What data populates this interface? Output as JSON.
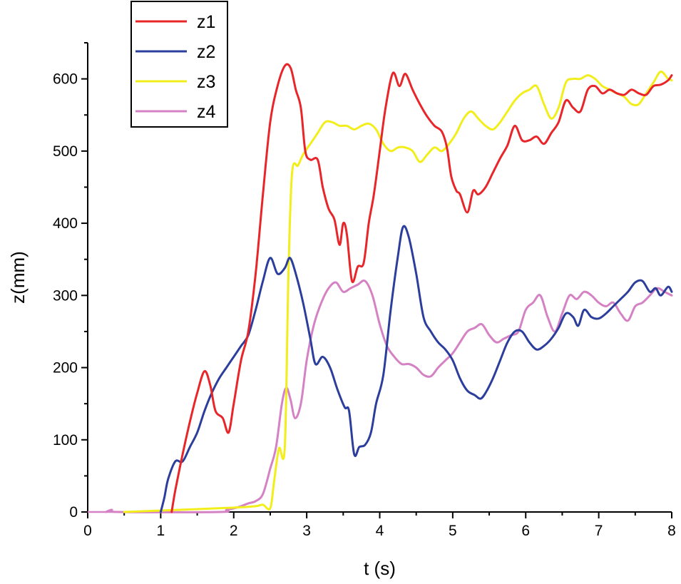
{
  "chart_data": {
    "type": "line",
    "title": "",
    "xlabel": "t (s)",
    "ylabel": "z(mm)",
    "xlim": [
      0,
      8
    ],
    "ylim": [
      0,
      650
    ],
    "xticks": [
      0,
      1,
      2,
      3,
      4,
      5,
      6,
      7,
      8
    ],
    "yticks": [
      0,
      100,
      200,
      300,
      400,
      500,
      600
    ],
    "grid": false,
    "legend": "top-left",
    "series": [
      {
        "name": "z1",
        "color": "#e8262a",
        "points": [
          [
            1.15,
            0
          ],
          [
            1.2,
            30
          ],
          [
            1.3,
            80
          ],
          [
            1.4,
            125
          ],
          [
            1.5,
            165
          ],
          [
            1.6,
            195
          ],
          [
            1.68,
            175
          ],
          [
            1.75,
            140
          ],
          [
            1.85,
            130
          ],
          [
            1.93,
            110
          ],
          [
            2.0,
            150
          ],
          [
            2.1,
            210
          ],
          [
            2.2,
            250
          ],
          [
            2.3,
            330
          ],
          [
            2.4,
            440
          ],
          [
            2.5,
            540
          ],
          [
            2.6,
            590
          ],
          [
            2.7,
            618
          ],
          [
            2.78,
            615
          ],
          [
            2.85,
            585
          ],
          [
            2.92,
            560
          ],
          [
            2.98,
            500
          ],
          [
            3.05,
            488
          ],
          [
            3.15,
            488
          ],
          [
            3.22,
            450
          ],
          [
            3.3,
            420
          ],
          [
            3.38,
            405
          ],
          [
            3.45,
            370
          ],
          [
            3.5,
            400
          ],
          [
            3.55,
            385
          ],
          [
            3.62,
            320
          ],
          [
            3.7,
            340
          ],
          [
            3.78,
            345
          ],
          [
            3.85,
            400
          ],
          [
            3.92,
            440
          ],
          [
            4.0,
            500
          ],
          [
            4.08,
            560
          ],
          [
            4.18,
            608
          ],
          [
            4.27,
            590
          ],
          [
            4.35,
            607
          ],
          [
            4.45,
            585
          ],
          [
            4.55,
            565
          ],
          [
            4.65,
            548
          ],
          [
            4.75,
            535
          ],
          [
            4.85,
            527
          ],
          [
            4.92,
            505
          ],
          [
            4.98,
            465
          ],
          [
            5.05,
            445
          ],
          [
            5.1,
            440
          ],
          [
            5.2,
            415
          ],
          [
            5.28,
            445
          ],
          [
            5.35,
            440
          ],
          [
            5.45,
            450
          ],
          [
            5.55,
            470
          ],
          [
            5.65,
            490
          ],
          [
            5.75,
            508
          ],
          [
            5.85,
            535
          ],
          [
            5.95,
            515
          ],
          [
            6.05,
            515
          ],
          [
            6.15,
            520
          ],
          [
            6.25,
            510
          ],
          [
            6.35,
            525
          ],
          [
            6.45,
            540
          ],
          [
            6.55,
            570
          ],
          [
            6.65,
            560
          ],
          [
            6.75,
            555
          ],
          [
            6.85,
            585
          ],
          [
            6.95,
            590
          ],
          [
            7.05,
            580
          ],
          [
            7.15,
            585
          ],
          [
            7.25,
            580
          ],
          [
            7.35,
            578
          ],
          [
            7.45,
            585
          ],
          [
            7.55,
            580
          ],
          [
            7.65,
            578
          ],
          [
            7.75,
            590
          ],
          [
            7.85,
            592
          ],
          [
            7.95,
            598
          ],
          [
            8.0,
            605
          ]
        ]
      },
      {
        "name": "z2",
        "color": "#2c3e9c",
        "points": [
          [
            1.0,
            0
          ],
          [
            1.05,
            20
          ],
          [
            1.1,
            45
          ],
          [
            1.2,
            70
          ],
          [
            1.3,
            70
          ],
          [
            1.4,
            90
          ],
          [
            1.5,
            110
          ],
          [
            1.6,
            140
          ],
          [
            1.7,
            165
          ],
          [
            1.8,
            185
          ],
          [
            1.9,
            200
          ],
          [
            2.0,
            215
          ],
          [
            2.1,
            230
          ],
          [
            2.2,
            245
          ],
          [
            2.3,
            280
          ],
          [
            2.4,
            320
          ],
          [
            2.5,
            352
          ],
          [
            2.6,
            330
          ],
          [
            2.7,
            338
          ],
          [
            2.77,
            352
          ],
          [
            2.85,
            330
          ],
          [
            2.95,
            290
          ],
          [
            3.05,
            240
          ],
          [
            3.12,
            205
          ],
          [
            3.22,
            215
          ],
          [
            3.32,
            200
          ],
          [
            3.42,
            170
          ],
          [
            3.52,
            145
          ],
          [
            3.58,
            140
          ],
          [
            3.65,
            80
          ],
          [
            3.72,
            90
          ],
          [
            3.8,
            93
          ],
          [
            3.88,
            110
          ],
          [
            3.95,
            150
          ],
          [
            4.05,
            190
          ],
          [
            4.15,
            280
          ],
          [
            4.25,
            355
          ],
          [
            4.32,
            395
          ],
          [
            4.4,
            380
          ],
          [
            4.5,
            330
          ],
          [
            4.6,
            270
          ],
          [
            4.7,
            250
          ],
          [
            4.8,
            235
          ],
          [
            4.9,
            225
          ],
          [
            5.0,
            210
          ],
          [
            5.1,
            185
          ],
          [
            5.2,
            168
          ],
          [
            5.3,
            162
          ],
          [
            5.38,
            157
          ],
          [
            5.45,
            165
          ],
          [
            5.55,
            185
          ],
          [
            5.65,
            210
          ],
          [
            5.75,
            235
          ],
          [
            5.85,
            250
          ],
          [
            5.95,
            250
          ],
          [
            6.05,
            235
          ],
          [
            6.15,
            225
          ],
          [
            6.25,
            230
          ],
          [
            6.35,
            240
          ],
          [
            6.45,
            255
          ],
          [
            6.55,
            275
          ],
          [
            6.65,
            270
          ],
          [
            6.72,
            258
          ],
          [
            6.8,
            280
          ],
          [
            6.9,
            270
          ],
          [
            7.0,
            268
          ],
          [
            7.1,
            275
          ],
          [
            7.2,
            285
          ],
          [
            7.3,
            295
          ],
          [
            7.4,
            305
          ],
          [
            7.5,
            318
          ],
          [
            7.6,
            320
          ],
          [
            7.7,
            305
          ],
          [
            7.78,
            310
          ],
          [
            7.85,
            300
          ],
          [
            7.95,
            312
          ],
          [
            8.0,
            305
          ]
        ]
      },
      {
        "name": "z3",
        "color": "#f2ee1c",
        "points": [
          [
            0.5,
            0
          ],
          [
            1.0,
            2
          ],
          [
            1.5,
            4
          ],
          [
            2.0,
            6
          ],
          [
            2.3,
            8
          ],
          [
            2.4,
            10
          ],
          [
            2.5,
            5
          ],
          [
            2.55,
            40
          ],
          [
            2.62,
            88
          ],
          [
            2.7,
            90
          ],
          [
            2.75,
            330
          ],
          [
            2.8,
            470
          ],
          [
            2.88,
            480
          ],
          [
            2.95,
            495
          ],
          [
            3.05,
            510
          ],
          [
            3.15,
            525
          ],
          [
            3.25,
            540
          ],
          [
            3.35,
            540
          ],
          [
            3.45,
            535
          ],
          [
            3.55,
            535
          ],
          [
            3.65,
            530
          ],
          [
            3.75,
            535
          ],
          [
            3.85,
            538
          ],
          [
            3.95,
            530
          ],
          [
            4.05,
            510
          ],
          [
            4.15,
            500
          ],
          [
            4.25,
            505
          ],
          [
            4.35,
            505
          ],
          [
            4.45,
            500
          ],
          [
            4.55,
            485
          ],
          [
            4.65,
            495
          ],
          [
            4.75,
            505
          ],
          [
            4.85,
            500
          ],
          [
            4.95,
            510
          ],
          [
            5.05,
            525
          ],
          [
            5.15,
            545
          ],
          [
            5.25,
            555
          ],
          [
            5.35,
            545
          ],
          [
            5.45,
            535
          ],
          [
            5.55,
            530
          ],
          [
            5.65,
            540
          ],
          [
            5.75,
            555
          ],
          [
            5.85,
            570
          ],
          [
            5.95,
            580
          ],
          [
            6.05,
            585
          ],
          [
            6.15,
            590
          ],
          [
            6.25,
            565
          ],
          [
            6.35,
            545
          ],
          [
            6.45,
            560
          ],
          [
            6.55,
            595
          ],
          [
            6.65,
            600
          ],
          [
            6.75,
            600
          ],
          [
            6.85,
            605
          ],
          [
            6.95,
            600
          ],
          [
            7.05,
            590
          ],
          [
            7.15,
            585
          ],
          [
            7.25,
            580
          ],
          [
            7.35,
            575
          ],
          [
            7.45,
            565
          ],
          [
            7.55,
            565
          ],
          [
            7.65,
            580
          ],
          [
            7.75,
            595
          ],
          [
            7.85,
            610
          ],
          [
            7.95,
            600
          ],
          [
            8.0,
            598
          ]
        ]
      },
      {
        "name": "z4",
        "color": "#d582c4",
        "points": [
          [
            0.25,
            0
          ],
          [
            0.33,
            3
          ],
          [
            0.42,
            0
          ],
          [
            1.8,
            0
          ],
          [
            1.9,
            3
          ],
          [
            2.0,
            5
          ],
          [
            2.1,
            8
          ],
          [
            2.2,
            12
          ],
          [
            2.3,
            15
          ],
          [
            2.4,
            25
          ],
          [
            2.5,
            60
          ],
          [
            2.58,
            90
          ],
          [
            2.66,
            150
          ],
          [
            2.72,
            172
          ],
          [
            2.78,
            155
          ],
          [
            2.84,
            130
          ],
          [
            2.92,
            150
          ],
          [
            3.0,
            210
          ],
          [
            3.1,
            260
          ],
          [
            3.2,
            290
          ],
          [
            3.3,
            310
          ],
          [
            3.4,
            318
          ],
          [
            3.5,
            305
          ],
          [
            3.6,
            310
          ],
          [
            3.7,
            315
          ],
          [
            3.8,
            320
          ],
          [
            3.9,
            300
          ],
          [
            4.0,
            260
          ],
          [
            4.1,
            230
          ],
          [
            4.2,
            215
          ],
          [
            4.3,
            205
          ],
          [
            4.4,
            205
          ],
          [
            4.5,
            200
          ],
          [
            4.6,
            190
          ],
          [
            4.7,
            188
          ],
          [
            4.8,
            200
          ],
          [
            4.9,
            210
          ],
          [
            5.0,
            220
          ],
          [
            5.1,
            235
          ],
          [
            5.2,
            250
          ],
          [
            5.3,
            255
          ],
          [
            5.4,
            260
          ],
          [
            5.5,
            245
          ],
          [
            5.6,
            235
          ],
          [
            5.7,
            240
          ],
          [
            5.8,
            245
          ],
          [
            5.9,
            250
          ],
          [
            6.0,
            280
          ],
          [
            6.1,
            290
          ],
          [
            6.2,
            300
          ],
          [
            6.3,
            270
          ],
          [
            6.4,
            250
          ],
          [
            6.5,
            275
          ],
          [
            6.6,
            300
          ],
          [
            6.7,
            295
          ],
          [
            6.8,
            305
          ],
          [
            6.9,
            300
          ],
          [
            7.0,
            290
          ],
          [
            7.1,
            285
          ],
          [
            7.2,
            290
          ],
          [
            7.3,
            275
          ],
          [
            7.4,
            265
          ],
          [
            7.5,
            285
          ],
          [
            7.6,
            290
          ],
          [
            7.7,
            300
          ],
          [
            7.8,
            310
          ],
          [
            7.9,
            305
          ],
          [
            8.0,
            300
          ]
        ]
      }
    ]
  }
}
